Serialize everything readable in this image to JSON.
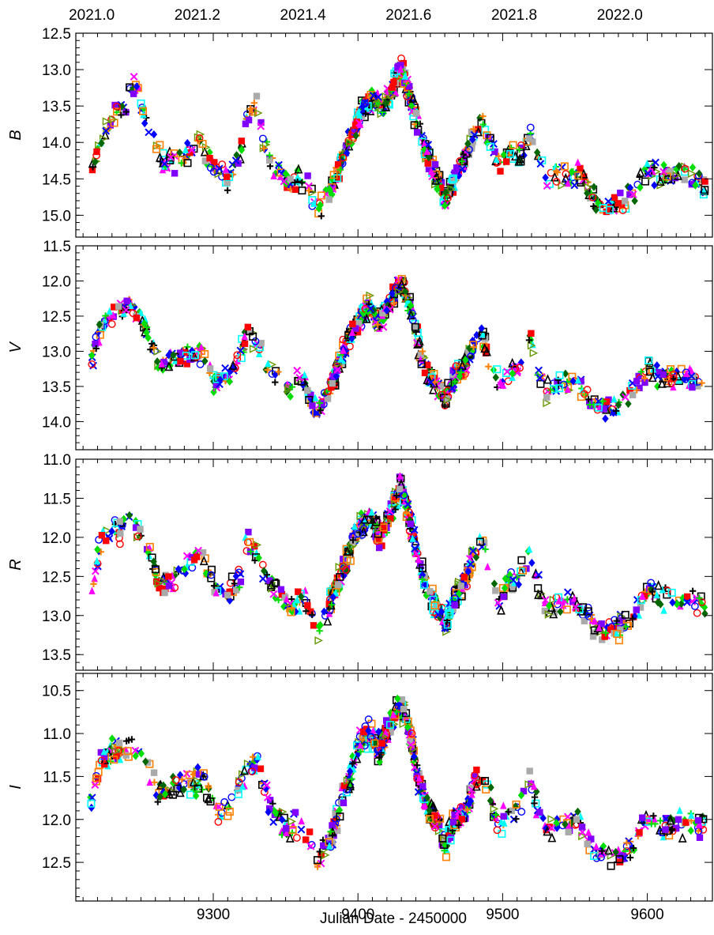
{
  "figure": {
    "xlabel": "Julian Date - 2450000",
    "xlim": [
      9205,
      9645
    ],
    "bottom_ticks": [
      9300,
      9400,
      9500,
      9600
    ],
    "top_axis": {
      "labels": [
        "2021.0",
        "2021.2",
        "2021.4",
        "2021.6",
        "2021.8",
        "2022.0"
      ],
      "jd_positions": [
        9216,
        9289,
        9362,
        9435,
        9508,
        9581
      ]
    }
  },
  "chart_data": [
    {
      "type": "scatter",
      "band": "B",
      "ylabel": "B",
      "ylim": [
        15.3,
        12.5
      ],
      "inverted": true,
      "yticks": [
        12.5,
        13.0,
        13.5,
        14.0,
        14.5,
        15.0
      ],
      "ytick_labels": [
        "12.5",
        "13.0",
        "13.5",
        "14.0",
        "14.5",
        "15.0"
      ],
      "trend": [
        [
          9217,
          14.3
        ],
        [
          9225,
          13.9
        ],
        [
          9233,
          13.55
        ],
        [
          9240,
          13.5
        ],
        [
          9246,
          13.2
        ],
        [
          9252,
          13.6
        ],
        [
          9258,
          13.9
        ],
        [
          9265,
          14.3
        ],
        [
          9275,
          14.25
        ],
        [
          9290,
          14.0
        ],
        [
          9300,
          14.3
        ],
        [
          9310,
          14.5
        ],
        [
          9318,
          14.2
        ],
        [
          9323,
          13.7
        ],
        [
          9330,
          13.5
        ],
        [
          9336,
          14.1
        ],
        [
          9345,
          14.4
        ],
        [
          9352,
          14.6
        ],
        [
          9360,
          14.5
        ],
        [
          9366,
          14.6
        ],
        [
          9372,
          14.95
        ],
        [
          9380,
          14.7
        ],
        [
          9388,
          14.3
        ],
        [
          9396,
          13.9
        ],
        [
          9403,
          13.55
        ],
        [
          9410,
          13.4
        ],
        [
          9418,
          13.5
        ],
        [
          9424,
          13.25
        ],
        [
          9430,
          12.95
        ],
        [
          9436,
          13.4
        ],
        [
          9442,
          13.75
        ],
        [
          9448,
          14.2
        ],
        [
          9455,
          14.5
        ],
        [
          9460,
          14.8
        ],
        [
          9468,
          14.4
        ],
        [
          9474,
          14.2
        ],
        [
          9480,
          13.9
        ],
        [
          9486,
          13.7
        ],
        [
          9492,
          14.0
        ],
        [
          9498,
          14.35
        ],
        [
          9505,
          14.1
        ],
        [
          9512,
          14.2
        ],
        [
          9519,
          13.85
        ],
        [
          9525,
          14.2
        ],
        [
          9530,
          14.5
        ],
        [
          9538,
          14.4
        ],
        [
          9545,
          14.55
        ],
        [
          9552,
          14.4
        ],
        [
          9560,
          14.7
        ],
        [
          9570,
          14.9
        ],
        [
          9580,
          14.85
        ],
        [
          9590,
          14.7
        ],
        [
          9600,
          14.4
        ],
        [
          9610,
          14.5
        ],
        [
          9625,
          14.4
        ],
        [
          9640,
          14.6
        ]
      ]
    },
    {
      "type": "scatter",
      "band": "V",
      "ylabel": "V",
      "ylim": [
        14.4,
        11.5
      ],
      "inverted": true,
      "yticks": [
        11.5,
        12.0,
        12.5,
        13.0,
        13.5,
        14.0
      ],
      "ytick_labels": [
        "11.5",
        "12.0",
        "12.5",
        "13.0",
        "13.5",
        "14.0"
      ],
      "trend": [
        [
          9217,
          13.1
        ],
        [
          9223,
          12.6
        ],
        [
          9230,
          12.5
        ],
        [
          9237,
          12.35
        ],
        [
          9244,
          12.35
        ],
        [
          9250,
          12.5
        ],
        [
          9256,
          12.8
        ],
        [
          9262,
          13.2
        ],
        [
          9272,
          13.1
        ],
        [
          9282,
          13.1
        ],
        [
          9292,
          13.0
        ],
        [
          9300,
          13.45
        ],
        [
          9310,
          13.4
        ],
        [
          9318,
          13.1
        ],
        [
          9324,
          12.7
        ],
        [
          9330,
          12.85
        ],
        [
          9338,
          13.2
        ],
        [
          9346,
          13.45
        ],
        [
          9354,
          13.55
        ],
        [
          9360,
          13.3
        ],
        [
          9366,
          13.6
        ],
        [
          9372,
          13.9
        ],
        [
          9380,
          13.6
        ],
        [
          9388,
          13.1
        ],
        [
          9396,
          12.75
        ],
        [
          9402,
          12.5
        ],
        [
          9408,
          12.35
        ],
        [
          9415,
          12.6
        ],
        [
          9422,
          12.3
        ],
        [
          9430,
          12.0
        ],
        [
          9436,
          12.4
        ],
        [
          9442,
          12.9
        ],
        [
          9448,
          13.3
        ],
        [
          9455,
          13.5
        ],
        [
          9460,
          13.7
        ],
        [
          9468,
          13.3
        ],
        [
          9474,
          13.2
        ],
        [
          9480,
          12.9
        ],
        [
          9486,
          12.75
        ],
        [
          9492,
          13.2
        ],
        [
          9498,
          13.55
        ],
        [
          9505,
          13.3
        ],
        [
          9512,
          13.2
        ],
        [
          9519,
          12.85
        ],
        [
          9525,
          13.3
        ],
        [
          9530,
          13.55
        ],
        [
          9538,
          13.45
        ],
        [
          9545,
          13.5
        ],
        [
          9552,
          13.45
        ],
        [
          9560,
          13.7
        ],
        [
          9570,
          13.85
        ],
        [
          9580,
          13.8
        ],
        [
          9590,
          13.6
        ],
        [
          9600,
          13.2
        ],
        [
          9610,
          13.4
        ],
        [
          9625,
          13.35
        ],
        [
          9640,
          13.45
        ]
      ]
    },
    {
      "type": "scatter",
      "band": "R",
      "ylabel": "R",
      "ylim": [
        13.7,
        11.0
      ],
      "inverted": true,
      "yticks": [
        11.0,
        11.5,
        12.0,
        12.5,
        13.0,
        13.5
      ],
      "ytick_labels": [
        "11.0",
        "11.5",
        "12.0",
        "12.5",
        "13.0",
        "13.5"
      ],
      "trend": [
        [
          9217,
          12.6
        ],
        [
          9223,
          12.0
        ],
        [
          9230,
          11.9
        ],
        [
          9237,
          11.9
        ],
        [
          9244,
          11.7
        ],
        [
          9250,
          12.0
        ],
        [
          9256,
          12.2
        ],
        [
          9262,
          12.6
        ],
        [
          9272,
          12.55
        ],
        [
          9282,
          12.3
        ],
        [
          9292,
          12.25
        ],
        [
          9300,
          12.6
        ],
        [
          9310,
          12.75
        ],
        [
          9318,
          12.5
        ],
        [
          9324,
          12.0
        ],
        [
          9330,
          12.2
        ],
        [
          9338,
          12.55
        ],
        [
          9346,
          12.75
        ],
        [
          9354,
          12.9
        ],
        [
          9360,
          12.8
        ],
        [
          9366,
          12.9
        ],
        [
          9372,
          13.25
        ],
        [
          9380,
          12.9
        ],
        [
          9388,
          12.5
        ],
        [
          9396,
          12.1
        ],
        [
          9402,
          11.85
        ],
        [
          9408,
          11.75
        ],
        [
          9415,
          12.0
        ],
        [
          9422,
          11.7
        ],
        [
          9430,
          11.35
        ],
        [
          9436,
          11.8
        ],
        [
          9442,
          12.3
        ],
        [
          9448,
          12.7
        ],
        [
          9455,
          12.9
        ],
        [
          9460,
          13.1
        ],
        [
          9468,
          12.7
        ],
        [
          9474,
          12.6
        ],
        [
          9480,
          12.2
        ],
        [
          9486,
          12.05
        ],
        [
          9492,
          12.5
        ],
        [
          9498,
          12.85
        ],
        [
          9505,
          12.55
        ],
        [
          9512,
          12.55
        ],
        [
          9519,
          12.2
        ],
        [
          9525,
          12.65
        ],
        [
          9530,
          12.9
        ],
        [
          9538,
          12.85
        ],
        [
          9545,
          12.85
        ],
        [
          9552,
          12.9
        ],
        [
          9560,
          13.05
        ],
        [
          9570,
          13.2
        ],
        [
          9580,
          13.15
        ],
        [
          9590,
          13.05
        ],
        [
          9600,
          12.6
        ],
        [
          9610,
          12.8
        ],
        [
          9625,
          12.8
        ],
        [
          9640,
          12.85
        ]
      ]
    },
    {
      "type": "scatter",
      "band": "I",
      "ylabel": "I",
      "ylim": [
        12.95,
        10.3
      ],
      "inverted": true,
      "yticks": [
        10.5,
        11.0,
        11.5,
        12.0,
        12.5
      ],
      "ytick_labels": [
        "10.5",
        "11.0",
        "11.5",
        "12.0",
        "12.5"
      ],
      "trend": [
        [
          9217,
          11.8
        ],
        [
          9223,
          11.3
        ],
        [
          9230,
          11.2
        ],
        [
          9237,
          11.2
        ],
        [
          9244,
          11.1
        ],
        [
          9250,
          11.3
        ],
        [
          9256,
          11.4
        ],
        [
          9262,
          11.7
        ],
        [
          9272,
          11.6
        ],
        [
          9282,
          11.6
        ],
        [
          9292,
          11.5
        ],
        [
          9300,
          11.85
        ],
        [
          9310,
          11.9
        ],
        [
          9318,
          11.6
        ],
        [
          9324,
          11.45
        ],
        [
          9330,
          11.3
        ],
        [
          9338,
          11.8
        ],
        [
          9346,
          12.0
        ],
        [
          9354,
          12.15
        ],
        [
          9360,
          12.0
        ],
        [
          9366,
          12.3
        ],
        [
          9372,
          12.5
        ],
        [
          9380,
          12.3
        ],
        [
          9388,
          11.8
        ],
        [
          9396,
          11.4
        ],
        [
          9402,
          11.1
        ],
        [
          9408,
          11.0
        ],
        [
          9415,
          11.2
        ],
        [
          9422,
          10.9
        ],
        [
          9430,
          10.65
        ],
        [
          9436,
          11.0
        ],
        [
          9442,
          11.55
        ],
        [
          9448,
          11.85
        ],
        [
          9455,
          12.0
        ],
        [
          9460,
          12.3
        ],
        [
          9468,
          12.0
        ],
        [
          9474,
          11.95
        ],
        [
          9480,
          11.6
        ],
        [
          9486,
          11.45
        ],
        [
          9492,
          11.8
        ],
        [
          9498,
          12.1
        ],
        [
          9505,
          11.85
        ],
        [
          9512,
          11.85
        ],
        [
          9519,
          11.5
        ],
        [
          9525,
          11.9
        ],
        [
          9530,
          12.15
        ],
        [
          9538,
          12.05
        ],
        [
          9545,
          12.1
        ],
        [
          9552,
          12.0
        ],
        [
          9560,
          12.3
        ],
        [
          9570,
          12.4
        ],
        [
          9580,
          12.45
        ],
        [
          9590,
          12.3
        ],
        [
          9600,
          12.0
        ],
        [
          9610,
          12.1
        ],
        [
          9625,
          12.05
        ],
        [
          9640,
          12.1
        ]
      ]
    }
  ],
  "observatory_styles": [
    {
      "color": "#ff0000",
      "marker": "circle-open"
    },
    {
      "color": "#ff0000",
      "marker": "square-filled"
    },
    {
      "color": "#ff7f00",
      "marker": "square-open"
    },
    {
      "color": "#ff7f00",
      "marker": "plus"
    },
    {
      "color": "#ff00ff",
      "marker": "triangle-filled"
    },
    {
      "color": "#ff00ff",
      "marker": "cross"
    },
    {
      "color": "#00dd00",
      "marker": "diamond-filled"
    },
    {
      "color": "#00dd00",
      "marker": "plus"
    },
    {
      "color": "#0000ff",
      "marker": "circle-open"
    },
    {
      "color": "#0000ff",
      "marker": "diamond-filled"
    },
    {
      "color": "#0000ff",
      "marker": "cross"
    },
    {
      "color": "#000000",
      "marker": "triangle-open"
    },
    {
      "color": "#000000",
      "marker": "square-open"
    },
    {
      "color": "#000000",
      "marker": "plus"
    },
    {
      "color": "#00ffff",
      "marker": "square-open"
    },
    {
      "color": "#00ffff",
      "marker": "triangle-filled"
    },
    {
      "color": "#aaaaaa",
      "marker": "square-filled"
    },
    {
      "color": "#006600",
      "marker": "diamond-filled"
    },
    {
      "color": "#669900",
      "marker": "triangle-right-open"
    },
    {
      "color": "#8000ff",
      "marker": "square-filled"
    }
  ]
}
